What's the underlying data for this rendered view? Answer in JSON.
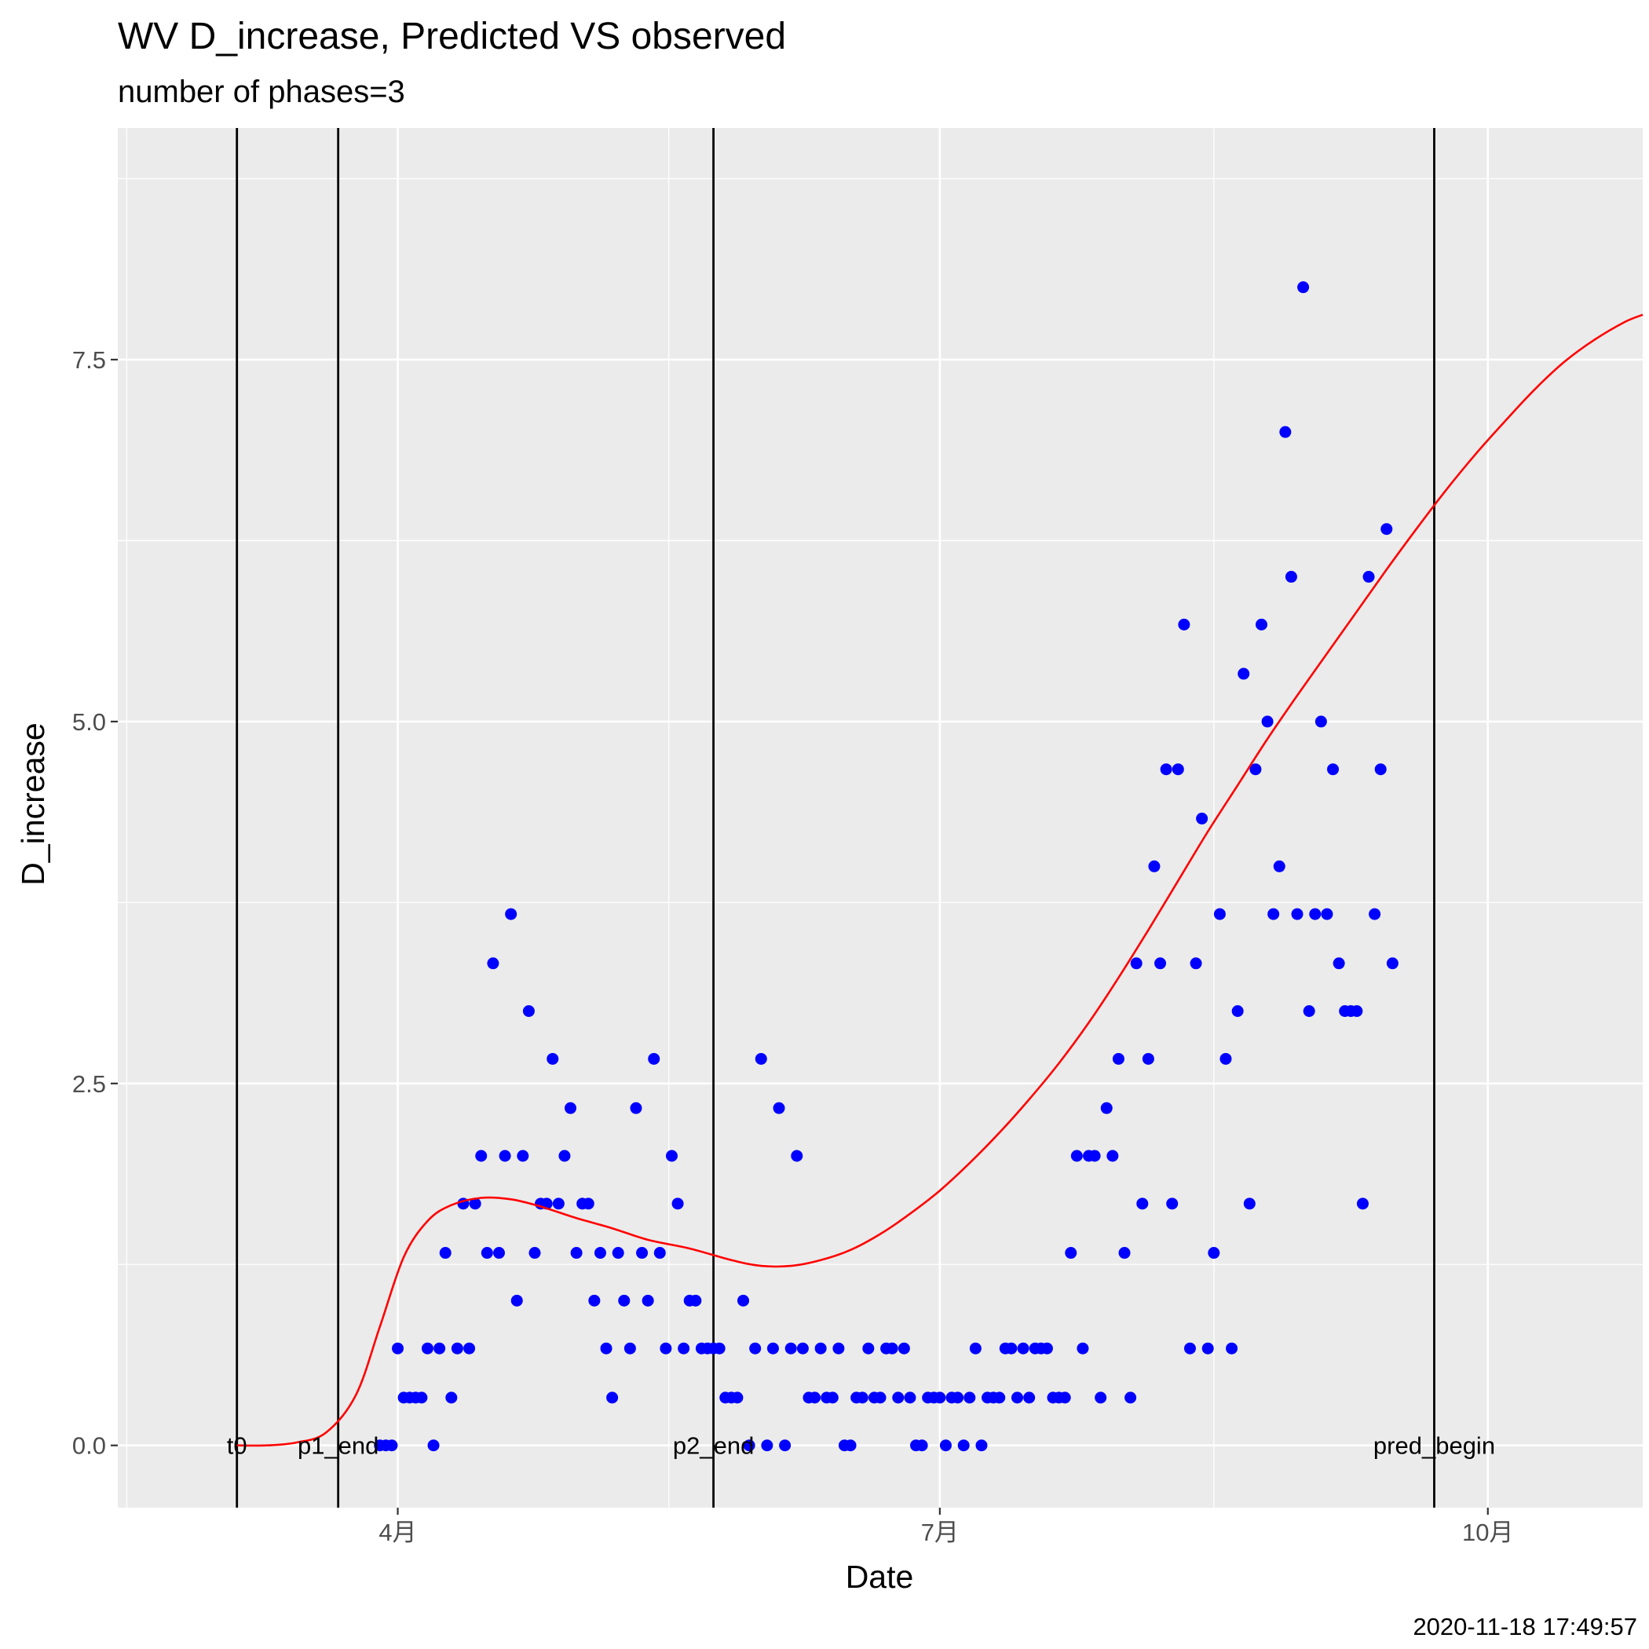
{
  "chart_data": {
    "type": "scatter",
    "title": "WV D_increase, Predicted VS observed",
    "subtitle": "number of phases=3",
    "xlabel": "Date",
    "ylabel": "D_increase",
    "caption": "2020-11-18 17:49:57",
    "xlim": [
      "2020-02-14",
      "2020-10-27"
    ],
    "ylim": [
      -0.43,
      9.1
    ],
    "x_ticks": [
      {
        "date": "2020-04-01",
        "label": "4月"
      },
      {
        "date": "2020-07-01",
        "label": "7月"
      },
      {
        "date": "2020-10-01",
        "label": "10月"
      }
    ],
    "y_ticks": [
      {
        "value": 0,
        "label": "0.0"
      },
      {
        "value": 2.5,
        "label": "2.5"
      },
      {
        "value": 5,
        "label": "5.0"
      },
      {
        "value": 7.5,
        "label": "7.5"
      }
    ],
    "vlines": [
      {
        "date": "2020-03-05",
        "label": "t0"
      },
      {
        "date": "2020-03-22",
        "label": "p1_end"
      },
      {
        "date": "2020-05-24",
        "label": "p2_end"
      },
      {
        "date": "2020-09-22",
        "label": "pred_begin"
      }
    ],
    "colors": {
      "observed": "#0000ff",
      "predicted": "#ff0000",
      "vline": "#000000",
      "panel": "#ebebeb",
      "grid": "#ffffff"
    },
    "observed": [
      [
        "2020-03-29",
        0
      ],
      [
        "2020-03-30",
        0
      ],
      [
        "2020-03-31",
        0
      ],
      [
        "2020-04-01",
        0.67
      ],
      [
        "2020-04-02",
        0.33
      ],
      [
        "2020-04-03",
        0.33
      ],
      [
        "2020-04-04",
        0.33
      ],
      [
        "2020-04-05",
        0.33
      ],
      [
        "2020-04-06",
        0.67
      ],
      [
        "2020-04-07",
        0
      ],
      [
        "2020-04-08",
        0.67
      ],
      [
        "2020-04-09",
        1.33
      ],
      [
        "2020-04-10",
        0.33
      ],
      [
        "2020-04-11",
        0.67
      ],
      [
        "2020-04-12",
        1.67
      ],
      [
        "2020-04-13",
        0.67
      ],
      [
        "2020-04-14",
        1.67
      ],
      [
        "2020-04-15",
        2
      ],
      [
        "2020-04-16",
        1.33
      ],
      [
        "2020-04-17",
        3.33
      ],
      [
        "2020-04-18",
        1.33
      ],
      [
        "2020-04-19",
        2
      ],
      [
        "2020-04-20",
        3.67
      ],
      [
        "2020-04-21",
        1
      ],
      [
        "2020-04-22",
        2
      ],
      [
        "2020-04-23",
        3
      ],
      [
        "2020-04-24",
        1.33
      ],
      [
        "2020-04-25",
        1.67
      ],
      [
        "2020-04-26",
        1.67
      ],
      [
        "2020-04-27",
        2.67
      ],
      [
        "2020-04-28",
        1.67
      ],
      [
        "2020-04-29",
        2
      ],
      [
        "2020-04-30",
        2.33
      ],
      [
        "2020-05-01",
        1.33
      ],
      [
        "2020-05-02",
        1.67
      ],
      [
        "2020-05-03",
        1.67
      ],
      [
        "2020-05-04",
        1
      ],
      [
        "2020-05-05",
        1.33
      ],
      [
        "2020-05-06",
        0.67
      ],
      [
        "2020-05-07",
        0.33
      ],
      [
        "2020-05-08",
        1.33
      ],
      [
        "2020-05-09",
        1
      ],
      [
        "2020-05-10",
        0.67
      ],
      [
        "2020-05-11",
        2.33
      ],
      [
        "2020-05-12",
        1.33
      ],
      [
        "2020-05-13",
        1
      ],
      [
        "2020-05-14",
        2.67
      ],
      [
        "2020-05-15",
        1.33
      ],
      [
        "2020-05-16",
        0.67
      ],
      [
        "2020-05-17",
        2
      ],
      [
        "2020-05-18",
        1.67
      ],
      [
        "2020-05-19",
        0.67
      ],
      [
        "2020-05-20",
        1
      ],
      [
        "2020-05-21",
        1
      ],
      [
        "2020-05-22",
        0.67
      ],
      [
        "2020-05-23",
        0.67
      ],
      [
        "2020-05-24",
        0.67
      ],
      [
        "2020-05-25",
        0.67
      ],
      [
        "2020-05-26",
        0.33
      ],
      [
        "2020-05-27",
        0.33
      ],
      [
        "2020-05-28",
        0.33
      ],
      [
        "2020-05-29",
        1
      ],
      [
        "2020-05-30",
        0
      ],
      [
        "2020-05-31",
        0.67
      ],
      [
        "2020-06-01",
        2.67
      ],
      [
        "2020-06-02",
        0
      ],
      [
        "2020-06-03",
        0.67
      ],
      [
        "2020-06-04",
        2.33
      ],
      [
        "2020-06-05",
        0
      ],
      [
        "2020-06-06",
        0.67
      ],
      [
        "2020-06-07",
        2
      ],
      [
        "2020-06-08",
        0.67
      ],
      [
        "2020-06-09",
        0.33
      ],
      [
        "2020-06-10",
        0.33
      ],
      [
        "2020-06-11",
        0.67
      ],
      [
        "2020-06-12",
        0.33
      ],
      [
        "2020-06-13",
        0.33
      ],
      [
        "2020-06-14",
        0.67
      ],
      [
        "2020-06-15",
        0
      ],
      [
        "2020-06-16",
        0
      ],
      [
        "2020-06-17",
        0.33
      ],
      [
        "2020-06-18",
        0.33
      ],
      [
        "2020-06-19",
        0.67
      ],
      [
        "2020-06-20",
        0.33
      ],
      [
        "2020-06-21",
        0.33
      ],
      [
        "2020-06-22",
        0.67
      ],
      [
        "2020-06-23",
        0.67
      ],
      [
        "2020-06-24",
        0.33
      ],
      [
        "2020-06-25",
        0.67
      ],
      [
        "2020-06-26",
        0.33
      ],
      [
        "2020-06-27",
        0
      ],
      [
        "2020-06-28",
        0
      ],
      [
        "2020-06-29",
        0.33
      ],
      [
        "2020-06-30",
        0.33
      ],
      [
        "2020-07-01",
        0.33
      ],
      [
        "2020-07-02",
        0
      ],
      [
        "2020-07-03",
        0.33
      ],
      [
        "2020-07-04",
        0.33
      ],
      [
        "2020-07-05",
        0
      ],
      [
        "2020-07-06",
        0.33
      ],
      [
        "2020-07-07",
        0.67
      ],
      [
        "2020-07-08",
        0
      ],
      [
        "2020-07-09",
        0.33
      ],
      [
        "2020-07-10",
        0.33
      ],
      [
        "2020-07-11",
        0.33
      ],
      [
        "2020-07-12",
        0.67
      ],
      [
        "2020-07-13",
        0.67
      ],
      [
        "2020-07-14",
        0.33
      ],
      [
        "2020-07-15",
        0.67
      ],
      [
        "2020-07-16",
        0.33
      ],
      [
        "2020-07-17",
        0.67
      ],
      [
        "2020-07-18",
        0.67
      ],
      [
        "2020-07-19",
        0.67
      ],
      [
        "2020-07-20",
        0.33
      ],
      [
        "2020-07-21",
        0.33
      ],
      [
        "2020-07-22",
        0.33
      ],
      [
        "2020-07-23",
        1.33
      ],
      [
        "2020-07-24",
        2
      ],
      [
        "2020-07-25",
        0.67
      ],
      [
        "2020-07-26",
        2
      ],
      [
        "2020-07-27",
        2
      ],
      [
        "2020-07-28",
        0.33
      ],
      [
        "2020-07-29",
        2.33
      ],
      [
        "2020-07-30",
        2
      ],
      [
        "2020-07-31",
        2.67
      ],
      [
        "2020-08-01",
        1.33
      ],
      [
        "2020-08-02",
        0.33
      ],
      [
        "2020-08-03",
        3.33
      ],
      [
        "2020-08-04",
        1.67
      ],
      [
        "2020-08-05",
        2.67
      ],
      [
        "2020-08-06",
        4
      ],
      [
        "2020-08-07",
        3.33
      ],
      [
        "2020-08-08",
        4.67
      ],
      [
        "2020-08-09",
        1.67
      ],
      [
        "2020-08-10",
        4.67
      ],
      [
        "2020-08-11",
        5.67
      ],
      [
        "2020-08-12",
        0.67
      ],
      [
        "2020-08-13",
        3.33
      ],
      [
        "2020-08-14",
        4.33
      ],
      [
        "2020-08-15",
        0.67
      ],
      [
        "2020-08-16",
        1.33
      ],
      [
        "2020-08-17",
        3.67
      ],
      [
        "2020-08-18",
        2.67
      ],
      [
        "2020-08-19",
        0.67
      ],
      [
        "2020-08-20",
        3
      ],
      [
        "2020-08-21",
        5.33
      ],
      [
        "2020-08-22",
        1.67
      ],
      [
        "2020-08-23",
        4.67
      ],
      [
        "2020-08-24",
        5.67
      ],
      [
        "2020-08-25",
        5
      ],
      [
        "2020-08-26",
        3.67
      ],
      [
        "2020-08-27",
        4
      ],
      [
        "2020-08-28",
        7
      ],
      [
        "2020-08-29",
        6
      ],
      [
        "2020-08-30",
        3.67
      ],
      [
        "2020-08-31",
        8
      ],
      [
        "2020-09-01",
        3
      ],
      [
        "2020-09-02",
        3.67
      ],
      [
        "2020-09-03",
        5
      ],
      [
        "2020-09-04",
        3.67
      ],
      [
        "2020-09-05",
        4.67
      ],
      [
        "2020-09-06",
        3.33
      ],
      [
        "2020-09-07",
        3
      ],
      [
        "2020-09-08",
        3
      ],
      [
        "2020-09-09",
        3
      ],
      [
        "2020-09-10",
        1.67
      ],
      [
        "2020-09-11",
        6
      ],
      [
        "2020-09-12",
        3.67
      ],
      [
        "2020-09-13",
        4.67
      ],
      [
        "2020-09-14",
        6.33
      ],
      [
        "2020-09-15",
        3.33
      ]
    ],
    "predicted": [
      [
        "2020-03-05",
        0
      ],
      [
        "2020-03-10",
        0
      ],
      [
        "2020-03-15",
        0.02
      ],
      [
        "2020-03-20",
        0.09
      ],
      [
        "2020-03-25",
        0.35
      ],
      [
        "2020-03-29",
        0.82
      ],
      [
        "2020-04-02",
        1.3
      ],
      [
        "2020-04-06",
        1.55
      ],
      [
        "2020-04-10",
        1.66
      ],
      [
        "2020-04-15",
        1.71
      ],
      [
        "2020-04-20",
        1.7
      ],
      [
        "2020-04-25",
        1.65
      ],
      [
        "2020-05-01",
        1.57
      ],
      [
        "2020-05-07",
        1.5
      ],
      [
        "2020-05-13",
        1.42
      ],
      [
        "2020-05-20",
        1.36
      ],
      [
        "2020-05-27",
        1.28
      ],
      [
        "2020-06-01",
        1.24
      ],
      [
        "2020-06-06",
        1.24
      ],
      [
        "2020-06-11",
        1.28
      ],
      [
        "2020-06-16",
        1.35
      ],
      [
        "2020-06-21",
        1.46
      ],
      [
        "2020-06-26",
        1.6
      ],
      [
        "2020-07-01",
        1.76
      ],
      [
        "2020-07-06",
        1.95
      ],
      [
        "2020-07-11",
        2.16
      ],
      [
        "2020-07-16",
        2.39
      ],
      [
        "2020-07-21",
        2.64
      ],
      [
        "2020-07-26",
        2.92
      ],
      [
        "2020-07-31",
        3.23
      ],
      [
        "2020-08-05",
        3.56
      ],
      [
        "2020-08-10",
        3.9
      ],
      [
        "2020-08-15",
        4.24
      ],
      [
        "2020-08-20",
        4.56
      ],
      [
        "2020-08-25",
        4.88
      ],
      [
        "2020-08-30",
        5.18
      ],
      [
        "2020-09-04",
        5.47
      ],
      [
        "2020-09-09",
        5.76
      ],
      [
        "2020-09-14",
        6.05
      ],
      [
        "2020-09-19",
        6.33
      ],
      [
        "2020-09-24",
        6.6
      ],
      [
        "2020-09-29",
        6.85
      ],
      [
        "2020-10-04",
        7.08
      ],
      [
        "2020-10-09",
        7.3
      ],
      [
        "2020-10-14",
        7.49
      ],
      [
        "2020-10-19",
        7.64
      ],
      [
        "2020-10-24",
        7.76
      ],
      [
        "2020-10-27",
        7.81
      ]
    ]
  }
}
